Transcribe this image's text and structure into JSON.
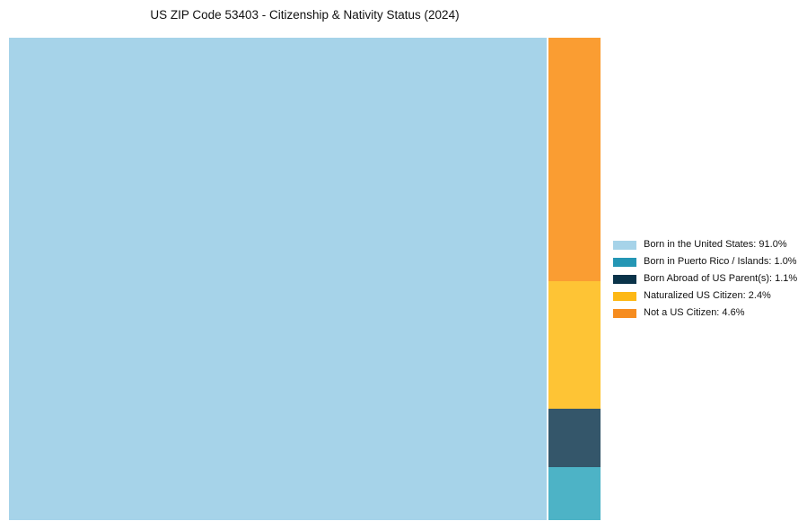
{
  "title": "US ZIP Code 53403 - Citizenship & Nativity Status (2024)",
  "chart_data": {
    "type": "treemap",
    "title": "US ZIP Code 53403 - Citizenship & Nativity Status (2024)",
    "legend_position": "right-center",
    "layout": "largest-item-left-block, remaining-items-stacked-descending-in-right-column, 2px-gap-between-block-and-column",
    "background_color": "#ffffff",
    "items": [
      {
        "name": "Born in the United States",
        "value": 91.0,
        "label": "Born in the United States: 91.0%",
        "fill": "#A6D3E9",
        "swatch": "#A6D3E9"
      },
      {
        "name": "Born in Puerto Rico / Islands",
        "value": 1.0,
        "label": "Born in Puerto Rico / Islands: 1.0%",
        "fill": "#4DB3C6",
        "swatch": "#2496B4"
      },
      {
        "name": "Born Abroad of US Parent(s)",
        "value": 1.1,
        "label": "Born Abroad of US Parent(s): 1.1%",
        "fill": "#34566A",
        "swatch": "#0A3349"
      },
      {
        "name": "Naturalized US Citizen",
        "value": 2.4,
        "label": "Naturalized US Citizen: 2.4%",
        "fill": "#FEC435",
        "swatch": "#FDB815"
      },
      {
        "name": "Not a US Citizen",
        "value": 4.6,
        "label": "Not a US Citizen: 4.6%",
        "fill": "#FA9D32",
        "swatch": "#F68C1F"
      }
    ]
  }
}
